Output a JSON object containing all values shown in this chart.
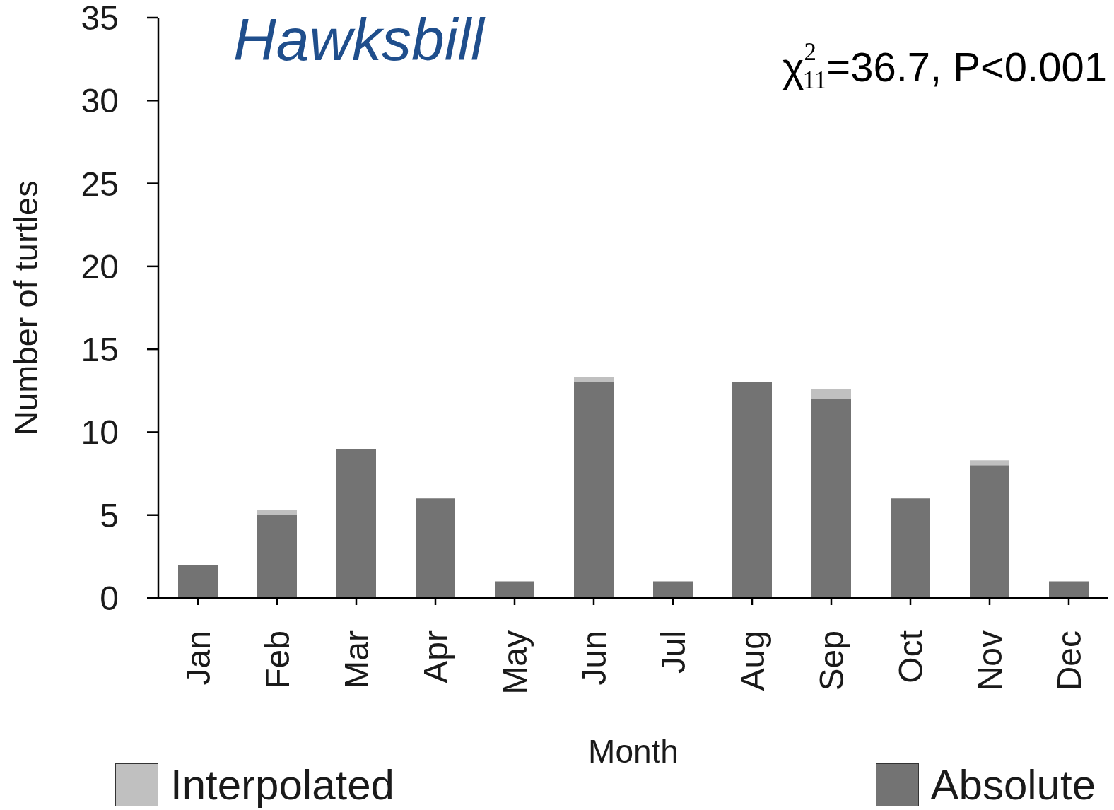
{
  "chart_data": {
    "type": "bar",
    "title": "Hawksbill",
    "xlabel": "Month",
    "ylabel": "Number of turtles",
    "annotations": [
      "χ$^{2}$$_{11}$=36.7, P<0.001"
    ],
    "categories": [
      "Jan",
      "Feb",
      "Mar",
      "Apr",
      "May",
      "Jun",
      "Jul",
      "Aug",
      "Sep",
      "Oct",
      "Nov",
      "Dec"
    ],
    "series": [
      {
        "name": "Absolute",
        "color": "#737373",
        "values": [
          2,
          5,
          9,
          6,
          1,
          13,
          1,
          13,
          12,
          6,
          8,
          1
        ]
      },
      {
        "name": "Interpolated",
        "color": "#c0c0c0",
        "values": [
          null,
          0.3,
          null,
          null,
          null,
          0.3,
          null,
          null,
          0.6,
          null,
          0.3,
          null
        ]
      }
    ],
    "stacked": true,
    "ylim": [
      0,
      35
    ],
    "yticks": [
      0,
      5,
      10,
      15,
      20,
      25,
      30,
      35
    ],
    "legend": "bottom"
  }
}
